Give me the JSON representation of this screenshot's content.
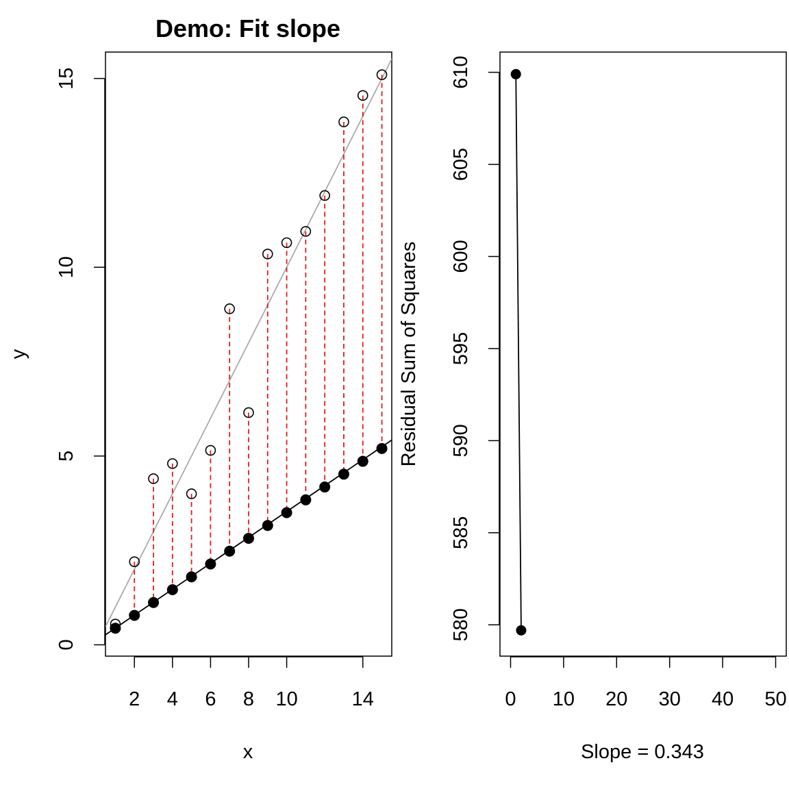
{
  "chart_data": [
    {
      "type": "scatter",
      "title": "Demo: Fit slope",
      "xlabel": "x",
      "ylabel": "y",
      "xlim": [
        0.48,
        15.52
      ],
      "ylim": [
        -0.3,
        15.7
      ],
      "xticks": [
        2,
        4,
        6,
        8,
        10,
        14
      ],
      "xtick_labels": [
        "2",
        "4",
        "6",
        "8",
        "10",
        "14"
      ],
      "yticks": [
        0,
        5,
        10,
        15
      ],
      "ytick_labels": [
        "0",
        "5",
        "10",
        "15"
      ],
      "x": [
        1,
        2,
        3,
        4,
        5,
        6,
        7,
        8,
        9,
        10,
        11,
        12,
        13,
        14,
        15
      ],
      "series": [
        {
          "type": "points",
          "style": "open-circle",
          "values": [
            0.55,
            2.2,
            4.4,
            4.8,
            4.0,
            5.15,
            8.9,
            6.15,
            10.35,
            10.65,
            10.95,
            11.9,
            13.85,
            14.55,
            15.1
          ]
        },
        {
          "type": "points",
          "style": "filled-circle",
          "values": [
            0.44,
            0.78,
            1.12,
            1.46,
            1.8,
            2.14,
            2.48,
            2.82,
            3.16,
            3.5,
            3.84,
            4.18,
            4.52,
            4.86,
            5.2
          ]
        }
      ],
      "lines": [
        {
          "color": "#aaaaaa",
          "intercept": 0.0,
          "slope": 1.0
        },
        {
          "color": "#000000",
          "intercept": 0.1,
          "slope": 0.343
        }
      ],
      "residual_segments": {
        "color": "#e41a1c",
        "style": "dashed"
      },
      "grid": false
    },
    {
      "type": "line",
      "xlabel": "Slope = 0.343",
      "ylabel": "Residual Sum of Squares",
      "xlim": [
        -2,
        52
      ],
      "ylim": [
        578.3,
        611.1
      ],
      "xticks": [
        0,
        10,
        20,
        30,
        40,
        50
      ],
      "xtick_labels": [
        "0",
        "10",
        "20",
        "30",
        "40",
        "50"
      ],
      "yticks": [
        580,
        585,
        590,
        595,
        600,
        605,
        610
      ],
      "ytick_labels": [
        "580",
        "585",
        "590",
        "595",
        "600",
        "605",
        "610"
      ],
      "x": [
        1,
        2
      ],
      "values": [
        609.9,
        579.7
      ],
      "marker": "filled-circle",
      "grid": false
    }
  ]
}
